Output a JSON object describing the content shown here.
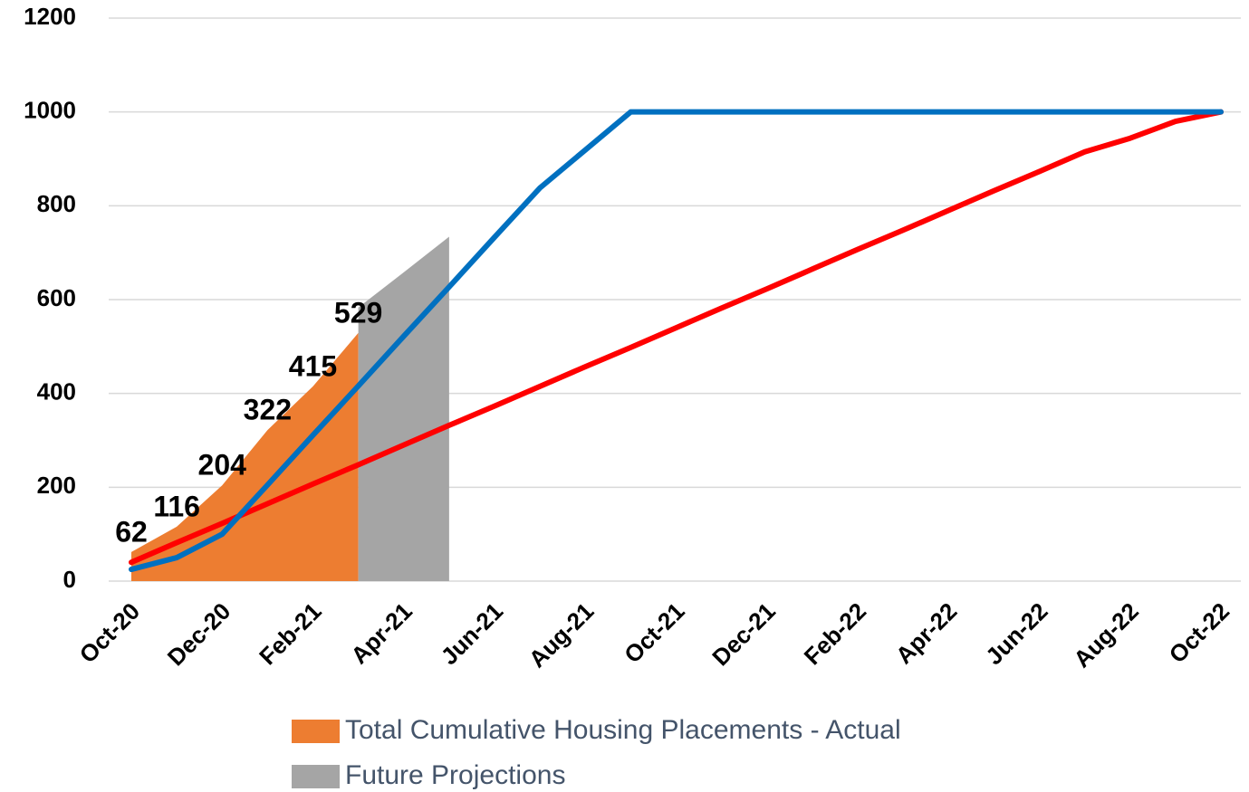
{
  "chart_data": {
    "type": "line",
    "categories": [
      "Oct-20",
      null,
      "Dec-20",
      null,
      "Feb-21",
      null,
      "Apr-21",
      null,
      "Jun-21",
      null,
      "Aug-21",
      null,
      "Oct-21",
      null,
      "Dec-21",
      null,
      "Feb-22",
      null,
      "Apr-22",
      null,
      "Jun-22",
      null,
      "Aug-22",
      null,
      "Oct-22"
    ],
    "series": [
      {
        "name": "Total Cumulative Housing Placements - Actual",
        "kind": "area",
        "color": "#ed7d31",
        "data_labels": true,
        "values": [
          62,
          116,
          204,
          322,
          415,
          529,
          null,
          null,
          null,
          null,
          null,
          null,
          null,
          null,
          null,
          null,
          null,
          null,
          null,
          null,
          null,
          null,
          null,
          null,
          null
        ]
      },
      {
        "name": "Future Projections",
        "kind": "area",
        "color": "#a5a5a5",
        "values": [
          null,
          null,
          null,
          null,
          null,
          583,
          658,
          734,
          null,
          null,
          null,
          null,
          null,
          null,
          null,
          null,
          null,
          null,
          null,
          null,
          null,
          null,
          null,
          null,
          null
        ]
      },
      {
        "kind": "line",
        "color": "#ff0000",
        "values": [
          40,
          82,
          123,
          165,
          207,
          248,
          290,
          332,
          373,
          415,
          457,
          498,
          540,
          582,
          623,
          665,
          707,
          748,
          790,
          832,
          873,
          915,
          944,
          980,
          1000
        ]
      },
      {
        "kind": "line",
        "color": "#0070c0",
        "values": [
          25,
          50,
          100,
          205,
          311,
          416,
          522,
          627,
          733,
          838,
          919,
          1000,
          1000,
          1000,
          1000,
          1000,
          1000,
          1000,
          1000,
          1000,
          1000,
          1000,
          1000,
          1000,
          1000
        ]
      }
    ],
    "ylim": [
      0,
      1200
    ],
    "yticks": [
      0,
      200,
      400,
      600,
      800,
      1000,
      1200
    ],
    "grid": true
  }
}
